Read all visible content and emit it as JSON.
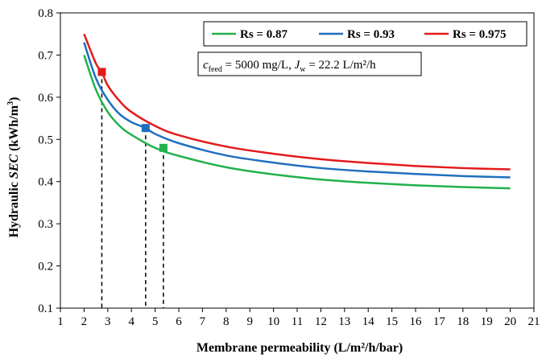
{
  "chart_data": {
    "type": "line",
    "xlabel": "Membrane permeability (L/m²/h/bar)",
    "ylabel": "Hydraulic SEC (kWh/m³)",
    "xlim": [
      1,
      21
    ],
    "ylim": [
      0.1,
      0.8
    ],
    "x_ticks": [
      1,
      2,
      3,
      4,
      5,
      6,
      7,
      8,
      9,
      10,
      11,
      12,
      13,
      14,
      15,
      16,
      17,
      18,
      19,
      20,
      21
    ],
    "y_ticks": [
      0.1,
      0.2,
      0.3,
      0.4,
      0.5,
      0.6,
      0.7,
      0.8
    ],
    "grid": false,
    "legend_position": "top-right",
    "annotation": {
      "c_label": "c",
      "c_sub": "feed",
      "c_value": " = 5000 mg/L, ",
      "j_label": "J",
      "j_sub": "w",
      "j_value": " = 22.2 L/m²/h"
    },
    "series": [
      {
        "name": "Rs = 0.87",
        "color": "#22b14c",
        "x": [
          2,
          2.5,
          3,
          3.5,
          4,
          5,
          6,
          8,
          10,
          12,
          14,
          16,
          18,
          20
        ],
        "y": [
          0.7,
          0.618,
          0.565,
          0.532,
          0.511,
          0.48,
          0.461,
          0.434,
          0.417,
          0.405,
          0.397,
          0.391,
          0.387,
          0.384
        ],
        "marker": {
          "x": 5.35,
          "y": 0.48
        },
        "dropline_x": 5.35
      },
      {
        "name": "Rs = 0.93",
        "color": "#1f6fbf",
        "x": [
          2,
          2.5,
          3,
          3.5,
          4,
          4.6,
          5,
          6,
          8,
          10,
          12,
          14,
          16,
          18,
          20
        ],
        "y": [
          0.73,
          0.645,
          0.594,
          0.56,
          0.541,
          0.527,
          0.513,
          0.491,
          0.462,
          0.445,
          0.432,
          0.424,
          0.418,
          0.413,
          0.41
        ],
        "marker": {
          "x": 4.6,
          "y": 0.527
        },
        "dropline_x": 4.6
      },
      {
        "name": "Rs = 0.975",
        "color": "#e31a1c",
        "x": [
          2,
          2.5,
          2.75,
          3,
          3.5,
          4,
          5,
          6,
          8,
          10,
          12,
          14,
          16,
          18,
          20
        ],
        "y": [
          0.75,
          0.68,
          0.66,
          0.628,
          0.591,
          0.565,
          0.532,
          0.51,
          0.483,
          0.466,
          0.453,
          0.444,
          0.437,
          0.432,
          0.429
        ],
        "marker": {
          "x": 2.75,
          "y": 0.66
        },
        "dropline_x": 2.75
      }
    ]
  }
}
